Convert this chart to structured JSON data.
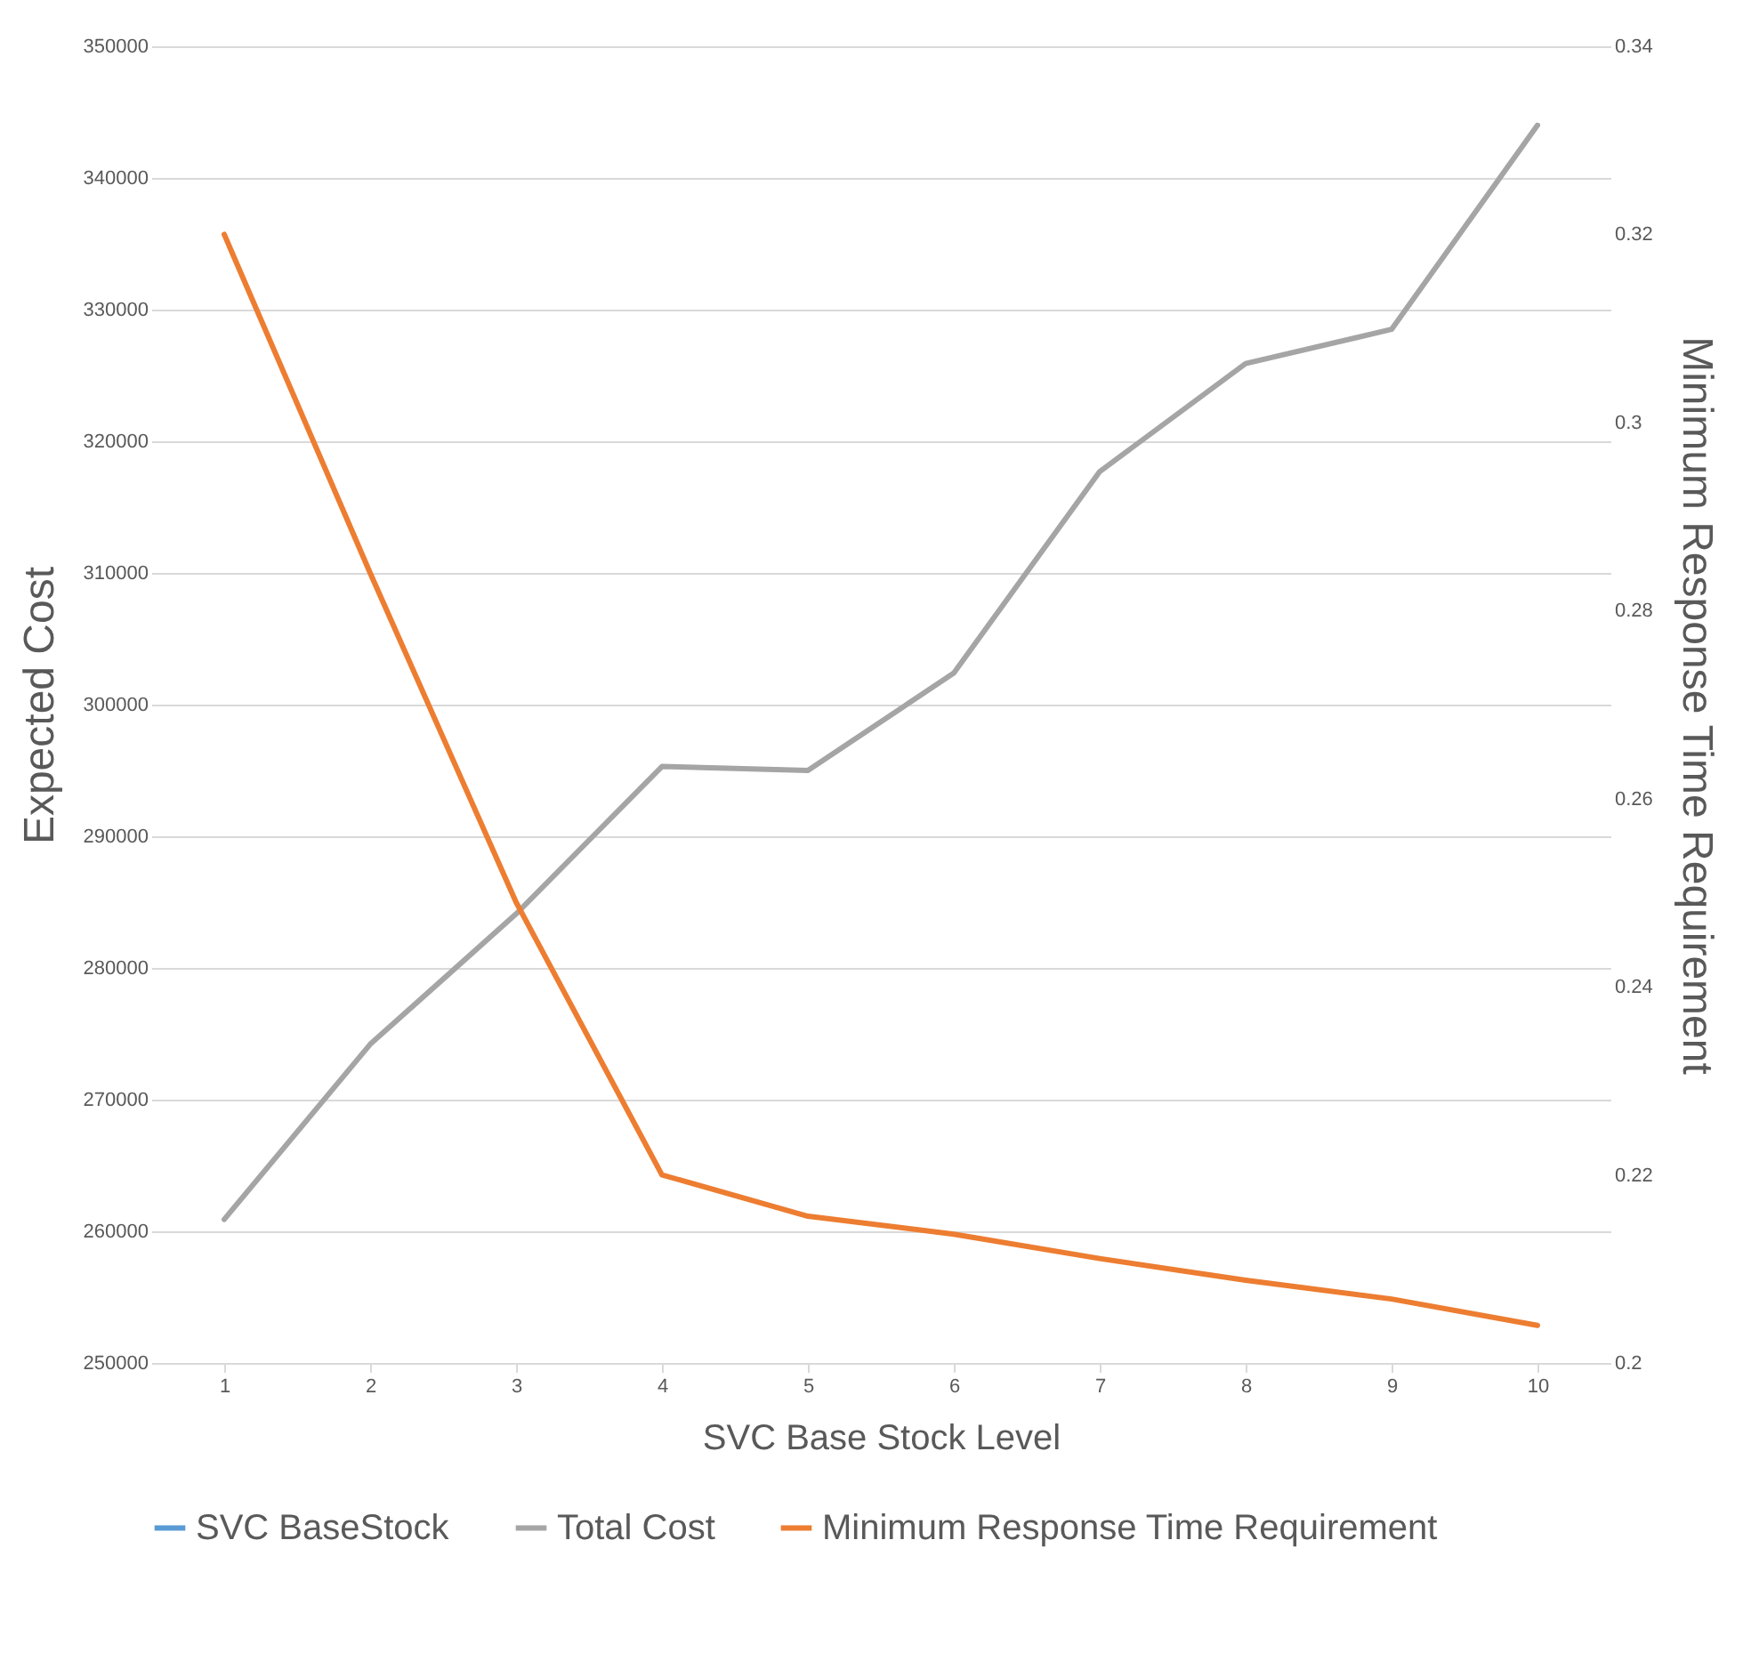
{
  "chart_data": {
    "type": "line",
    "xlabel": "SVC Base Stock Level",
    "ylabel": "Expected Cost",
    "y2label": "Minimum Response Time Requirement",
    "categories": [
      "1",
      "2",
      "3",
      "4",
      "5",
      "6",
      "7",
      "8",
      "9",
      "10"
    ],
    "series": [
      {
        "name": "SVC BaseStock",
        "color": "#5b9bd5",
        "values": [
          null,
          null,
          null,
          null,
          null,
          null,
          null,
          null,
          null,
          null
        ]
      },
      {
        "name": "Total Cost",
        "color": "#a5a5a5",
        "values": [
          260900,
          274200,
          284100,
          295300,
          295000,
          302400,
          317700,
          325900,
          328500,
          344000
        ]
      },
      {
        "name": "Minimum Response Time Requirement",
        "color": "#ed7d31",
        "axis": "y2",
        "values": [
          0.32,
          0.284,
          0.249,
          0.22,
          0.2156,
          0.2137,
          0.2111,
          0.2088,
          0.2068,
          0.204
        ]
      }
    ],
    "ylim": [
      250000,
      350000
    ],
    "yticks": [
      250000,
      260000,
      270000,
      280000,
      290000,
      300000,
      310000,
      320000,
      330000,
      340000,
      350000
    ],
    "y2lim": [
      0.2,
      0.34
    ],
    "y2ticks": [
      0.2,
      0.22,
      0.24,
      0.26,
      0.28,
      0.3,
      0.32,
      0.34
    ],
    "grid": "y",
    "legend": "bottom"
  }
}
